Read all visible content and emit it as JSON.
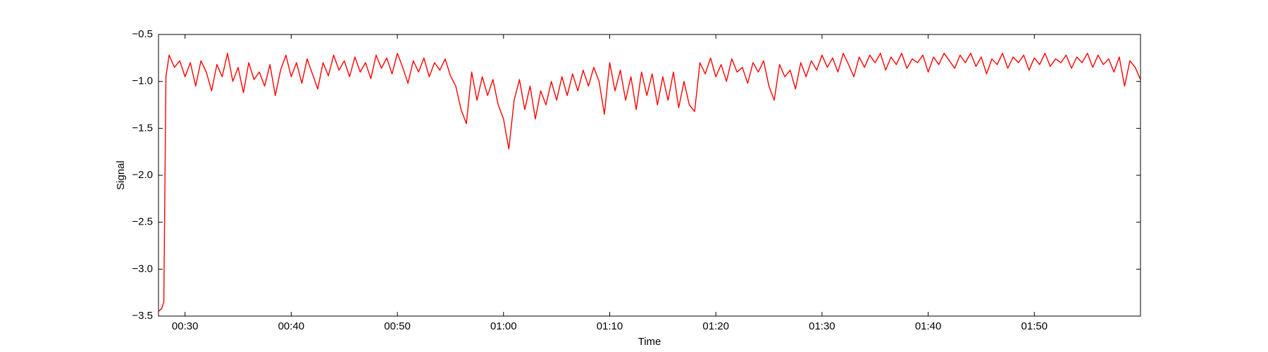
{
  "chart_data": {
    "type": "line",
    "x_label": "Time",
    "y_label": "Signal",
    "color": "#ff0000",
    "grid": false,
    "xlim": [
      27.5,
      120
    ],
    "ylim": [
      -3.5,
      -0.5
    ],
    "xticks": [
      {
        "value": 30,
        "label": "00:30"
      },
      {
        "value": 40,
        "label": "00:40"
      },
      {
        "value": 50,
        "label": "00:50"
      },
      {
        "value": 60,
        "label": "01:00"
      },
      {
        "value": 70,
        "label": "01:10"
      },
      {
        "value": 80,
        "label": "01:20"
      },
      {
        "value": 90,
        "label": "01:30"
      },
      {
        "value": 100,
        "label": "01:40"
      },
      {
        "value": 110,
        "label": "01:50"
      }
    ],
    "yticks": [
      {
        "value": -3.5,
        "label": "−3.5"
      },
      {
        "value": -3.0,
        "label": "−3.0"
      },
      {
        "value": -2.5,
        "label": "−2.5"
      },
      {
        "value": -2.0,
        "label": "−2.0"
      },
      {
        "value": -1.5,
        "label": "−1.5"
      },
      {
        "value": -1.0,
        "label": "−1.0"
      },
      {
        "value": -0.5,
        "label": "−0.5"
      }
    ],
    "x": [
      27.5,
      27.8,
      28.0,
      28.2,
      28.5,
      29,
      29.5,
      30,
      30.5,
      31,
      31.5,
      32,
      32.5,
      33,
      33.5,
      34,
      34.5,
      35,
      35.5,
      36,
      36.5,
      37,
      37.5,
      38,
      38.5,
      39,
      39.5,
      40,
      40.5,
      41,
      41.5,
      42,
      42.5,
      43,
      43.5,
      44,
      44.5,
      45,
      45.5,
      46,
      46.5,
      47,
      47.5,
      48,
      48.5,
      49,
      49.5,
      50,
      50.5,
      51,
      51.5,
      52,
      52.5,
      53,
      53.5,
      54,
      54.5,
      55,
      55.5,
      56,
      56.5,
      57,
      57.5,
      58,
      58.5,
      59,
      59.5,
      60,
      60.5,
      61,
      61.5,
      62,
      62.5,
      63,
      63.5,
      64,
      64.5,
      65,
      65.5,
      66,
      66.5,
      67,
      67.5,
      68,
      68.5,
      69,
      69.5,
      70,
      70.5,
      71,
      71.5,
      72,
      72.5,
      73,
      73.5,
      74,
      74.5,
      75,
      75.5,
      76,
      76.5,
      77,
      77.5,
      78,
      78.5,
      79,
      79.5,
      80,
      80.5,
      81,
      81.5,
      82,
      82.5,
      83,
      83.5,
      84,
      84.5,
      85,
      85.5,
      86,
      86.5,
      87,
      87.5,
      88,
      88.5,
      89,
      89.5,
      90,
      90.5,
      91,
      91.5,
      92,
      92.5,
      93,
      93.5,
      94,
      94.5,
      95,
      95.5,
      96,
      96.5,
      97,
      97.5,
      98,
      98.5,
      99,
      99.5,
      100,
      100.5,
      101,
      101.5,
      102,
      102.5,
      103,
      103.5,
      104,
      104.5,
      105,
      105.5,
      106,
      106.5,
      107,
      107.5,
      108,
      108.5,
      109,
      109.5,
      110,
      110.5,
      111,
      111.5,
      112,
      112.5,
      113,
      113.5,
      114,
      114.5,
      115,
      115.5,
      116,
      116.5,
      117,
      117.5,
      118,
      118.5,
      119,
      119.5,
      120
    ],
    "values": [
      -3.45,
      -3.42,
      -3.35,
      -0.95,
      -0.72,
      -0.85,
      -0.78,
      -0.95,
      -0.8,
      -1.05,
      -0.78,
      -0.9,
      -1.1,
      -0.82,
      -0.95,
      -0.7,
      -1.0,
      -0.85,
      -1.12,
      -0.8,
      -0.98,
      -0.9,
      -1.05,
      -0.82,
      -1.15,
      -0.88,
      -0.72,
      -0.95,
      -0.8,
      -1.02,
      -0.76,
      -0.92,
      -1.08,
      -0.8,
      -0.94,
      -0.72,
      -0.88,
      -0.78,
      -0.95,
      -0.74,
      -0.9,
      -0.8,
      -0.97,
      -0.72,
      -0.86,
      -0.75,
      -0.92,
      -0.7,
      -0.85,
      -1.02,
      -0.78,
      -0.9,
      -0.75,
      -0.95,
      -0.8,
      -0.88,
      -0.76,
      -0.94,
      -1.05,
      -1.3,
      -1.45,
      -0.9,
      -1.2,
      -0.95,
      -1.15,
      -0.98,
      -1.25,
      -1.4,
      -1.72,
      -1.2,
      -0.98,
      -1.3,
      -1.05,
      -1.4,
      -1.1,
      -1.25,
      -1.0,
      -1.2,
      -0.95,
      -1.15,
      -0.92,
      -1.1,
      -0.88,
      -1.05,
      -0.85,
      -1.0,
      -1.35,
      -0.8,
      -1.1,
      -0.88,
      -1.2,
      -0.95,
      -1.3,
      -0.9,
      -1.15,
      -0.92,
      -1.25,
      -0.95,
      -1.2,
      -0.9,
      -1.28,
      -1.0,
      -1.25,
      -1.32,
      -0.8,
      -0.92,
      -0.75,
      -0.95,
      -0.82,
      -1.0,
      -0.76,
      -0.9,
      -0.85,
      -1.02,
      -0.8,
      -0.9,
      -0.78,
      -1.05,
      -1.2,
      -0.82,
      -0.95,
      -0.88,
      -1.08,
      -0.8,
      -0.95,
      -0.78,
      -0.88,
      -0.72,
      -0.85,
      -0.75,
      -0.9,
      -0.7,
      -0.82,
      -0.95,
      -0.74,
      -0.85,
      -0.72,
      -0.8,
      -0.7,
      -0.88,
      -0.74,
      -0.82,
      -0.7,
      -0.86,
      -0.76,
      -0.8,
      -0.72,
      -0.9,
      -0.74,
      -0.82,
      -0.7,
      -0.78,
      -0.86,
      -0.72,
      -0.8,
      -0.7,
      -0.84,
      -0.74,
      -0.92,
      -0.76,
      -0.82,
      -0.7,
      -0.86,
      -0.74,
      -0.8,
      -0.72,
      -0.88,
      -0.75,
      -0.82,
      -0.7,
      -0.84,
      -0.76,
      -0.8,
      -0.72,
      -0.86,
      -0.74,
      -0.8,
      -0.7,
      -0.85,
      -0.72,
      -0.82,
      -0.76,
      -0.9,
      -0.74,
      -1.05,
      -0.78,
      -0.85,
      -0.98
    ]
  }
}
